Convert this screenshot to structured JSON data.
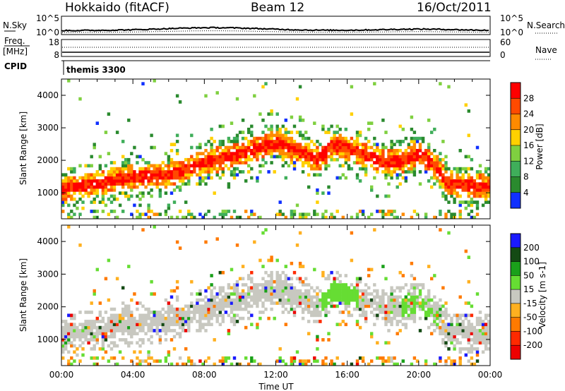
{
  "header": {
    "station": "Hokkaido (fitACF)",
    "beam": "Beam 12",
    "date": "16/Oct/2011"
  },
  "summary": {
    "nsky_label": "N.Sky",
    "nsky_ticks": [
      "10^5",
      "10^0"
    ],
    "nsearch_label": "N.Search",
    "nsearch_ticks": [
      "10^5",
      "10^0"
    ],
    "freq_label_line1": "Freq.",
    "freq_label_line2": "[MHz]",
    "freq_ticks": [
      "18",
      "8"
    ],
    "nave_label": "Nave",
    "nave_ticks": [
      "60",
      "0"
    ],
    "cpid_label": "CPID",
    "cpid_value": "themis 3300"
  },
  "colors": {
    "power_scale": [
      "#1030ff",
      "#2a8a2e",
      "#3fae5a",
      "#7fd040",
      "#ffd000",
      "#ff8a00",
      "#ff4a00",
      "#ff0000"
    ],
    "velocity_scale": [
      "#1a1aff",
      "#144a14",
      "#1aa01a",
      "#66dd33",
      "#c8c8c0",
      "#ffb020",
      "#ff7a00",
      "#ff2a00",
      "#ee0000"
    ],
    "ground_gray": "#c8c8c0"
  },
  "chart_data": [
    {
      "type": "heatmap",
      "panel": "power",
      "xlabel": "",
      "ylabel": "Slant Range [km]",
      "ylim": [
        200,
        4500
      ],
      "xlim": [
        "00:00",
        "24:00"
      ],
      "y_ticks": [
        "1000",
        "2000",
        "3000",
        "4000"
      ],
      "colorbar_label": "Power [dB]",
      "colorbar_ticks": [
        "4",
        "8",
        "12",
        "16",
        "20",
        "24",
        "28"
      ],
      "colorbar_range": [
        0,
        32
      ],
      "band_center_km": [
        [
          0,
          1100
        ],
        [
          2,
          1250
        ],
        [
          4,
          1450
        ],
        [
          6,
          1500
        ],
        [
          7,
          1700
        ],
        [
          8,
          1900
        ],
        [
          10,
          2150
        ],
        [
          11,
          2350
        ],
        [
          12,
          2500
        ],
        [
          13,
          2300
        ],
        [
          14,
          2000
        ],
        [
          14.5,
          2050
        ],
        [
          15,
          2450
        ],
        [
          16,
          2350
        ],
        [
          17,
          2100
        ],
        [
          18,
          1900
        ],
        [
          19,
          1950
        ],
        [
          20,
          2150
        ],
        [
          21,
          1700
        ],
        [
          21.5,
          1250
        ],
        [
          24,
          1100
        ]
      ]
    },
    {
      "type": "heatmap",
      "panel": "velocity",
      "xlabel": "Time UT",
      "ylabel": "Slant Range [km]",
      "ylim": [
        200,
        4500
      ],
      "xlim": [
        "00:00",
        "24:00"
      ],
      "x_ticks": [
        "00:00",
        "04:00",
        "08:00",
        "12:00",
        "16:00",
        "20:00",
        "00:00"
      ],
      "y_ticks": [
        "1000",
        "2000",
        "3000",
        "4000"
      ],
      "colorbar_label": "Velocity [m s-1]",
      "colorbar_ticks": [
        "200",
        "100",
        "50",
        "15",
        "-15",
        "-50",
        "-100",
        "-200"
      ]
    }
  ]
}
